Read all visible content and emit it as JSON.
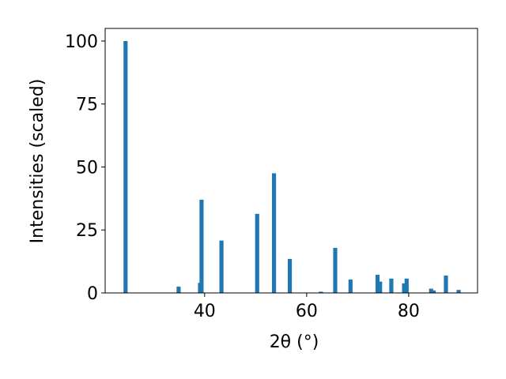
{
  "chart_data": {
    "type": "bar",
    "xlabel": "2θ (°)",
    "ylabel": "Intensities (scaled)",
    "x": [
      24.5,
      34.9,
      39.1,
      39.4,
      43.3,
      50.3,
      53.6,
      56.7,
      62.8,
      65.6,
      68.6,
      73.9,
      74.4,
      76.6,
      79.1,
      79.6,
      84.4,
      84.9,
      87.3,
      89.8
    ],
    "values": [
      100,
      2.5,
      4,
      37,
      20.8,
      31.4,
      47.5,
      13.5,
      0.5,
      17.9,
      5.3,
      7.2,
      4.5,
      5.7,
      3.8,
      5.7,
      1.7,
      1,
      6.9,
      1.2
    ],
    "color": "#1f77b4",
    "xlim": [
      20.5,
      93.5
    ],
    "xticks": [
      40,
      60,
      80
    ],
    "ylim": [
      0,
      105
    ],
    "yticks": [
      0,
      25,
      50,
      75,
      100
    ]
  }
}
